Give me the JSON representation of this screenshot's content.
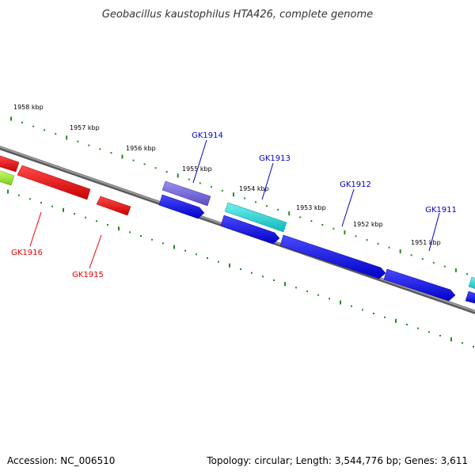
{
  "title": "Geobacillus kaustophilus HTA426, complete genome",
  "footer": {
    "accession": "Accession: NC_006510",
    "topology": "Topology: circular; Length: 3,544,776 bp; Genes: 3,611"
  },
  "scale_labels": [
    "1958 kbp",
    "1957 kbp",
    "1956 kbp",
    "1955 kbp",
    "1954 kbp",
    "1953 kbp",
    "1952 kbp",
    "1951 kbp"
  ],
  "genes": [
    {
      "label": "GK1916",
      "color": "#ff0000"
    },
    {
      "label": "GK1915",
      "color": "#ff0000"
    },
    {
      "label": "GK1914",
      "color": "#0000cc"
    },
    {
      "label": "GK1913",
      "color": "#0000cc"
    },
    {
      "label": "GK1912",
      "color": "#0000cc"
    },
    {
      "label": "GK1911",
      "color": "#0000cc"
    }
  ],
  "colors": {
    "backbone": "#808080",
    "tick": "#228b22",
    "cds_forward": "#0000ee",
    "cds_reverse": "#ff0000",
    "cds_purple": "#7060d0",
    "cds_cyan": "#20d0d0",
    "cds_green": "#99ee33"
  }
}
